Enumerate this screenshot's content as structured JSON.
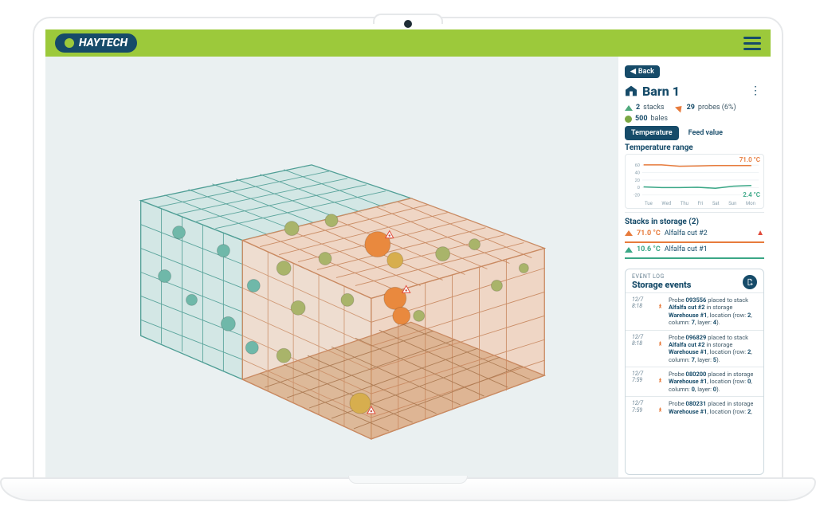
{
  "brand": {
    "name": "HAYTECH"
  },
  "topbar": {
    "green": "#9cc93b",
    "bar_bg": "#9cc93b"
  },
  "back": {
    "label": "Back"
  },
  "barn": {
    "title": "Barn 1",
    "stacks_count": "2",
    "stacks_label": "stacks",
    "probes_count": "29",
    "probes_label": "probes (6%)",
    "bales_count": "500",
    "bales_label": "bales"
  },
  "tabs": {
    "temperature": "Temperature",
    "feed": "Feed value"
  },
  "tempRange": {
    "title": "Temperature range",
    "max_label": "71.0 °C",
    "min_label": "2.4 °C",
    "y_ticks": [
      "60",
      "40",
      "20",
      "0",
      "-20"
    ],
    "days": [
      "Tue",
      "Wed",
      "Thu",
      "Fri",
      "Sat",
      "Sun",
      "Mon"
    ],
    "max_series_y": [
      0.08,
      0.08,
      0.12,
      0.11,
      0.1,
      0.1,
      0.1
    ],
    "min_series_y": [
      0.72,
      0.74,
      0.74,
      0.73,
      0.76,
      0.7,
      0.68
    ],
    "max_color": "#e77b3c",
    "min_color": "#3aa786"
  },
  "stacks": {
    "title": "Stacks in storage (2)",
    "items": [
      {
        "temp": "71.0 °C",
        "name": "Alfalfa cut #2",
        "color": "#e77b3c",
        "alert": true
      },
      {
        "temp": "10.6 °C",
        "name": "Alfalfa cut #1",
        "color": "#3aa786",
        "alert": false
      }
    ]
  },
  "events": {
    "badge": "EVENT LOG",
    "title": "Storage events",
    "items": [
      {
        "date": "12/7",
        "time": "8:18",
        "html": "Probe <b>093556</b> placed to stack <b>Alfalfa cut #2</b> in storage <b>Warehouse #1</b>, location (row: <b>2</b>, column: <b>7</b>, layer: <b>4</b>)."
      },
      {
        "date": "12/7",
        "time": "8:18",
        "html": "Probe <b>096829</b> placed to stack <b>Alfalfa cut #2</b> in storage <b>Warehouse #1</b>, location (row: <b>2</b>, column: <b>7</b>, layer: <b>5</b>)."
      },
      {
        "date": "12/7",
        "time": "7:59",
        "html": "Probe <b>080200</b> placed in storage <b>Warehouse #1</b>, location (row: <b>0</b>, column: <b>0</b>, layer: <b>0</b>)."
      },
      {
        "date": "12/7",
        "time": "7:59",
        "html": "Probe <b>080231</b> placed in storage <b>Warehouse #1</b>, location (row: <b>2</b>,"
      }
    ]
  },
  "viz": {
    "bg": "#eaf0f1",
    "stackA": {
      "fill": "#bfe0da",
      "stroke": "#4f9e95"
    },
    "stackB": {
      "fill": "#f0cdb5",
      "stroke": "#c98a62",
      "floor": "#cf9a6c"
    },
    "probe_colors": {
      "cool": "#6fb8a9",
      "mid": "#a9b46a",
      "warm": "#d7ae4e",
      "hot": "#e9893e"
    },
    "alert": "#e04b3b"
  },
  "colors": {
    "brand_dark": "#164b69"
  }
}
